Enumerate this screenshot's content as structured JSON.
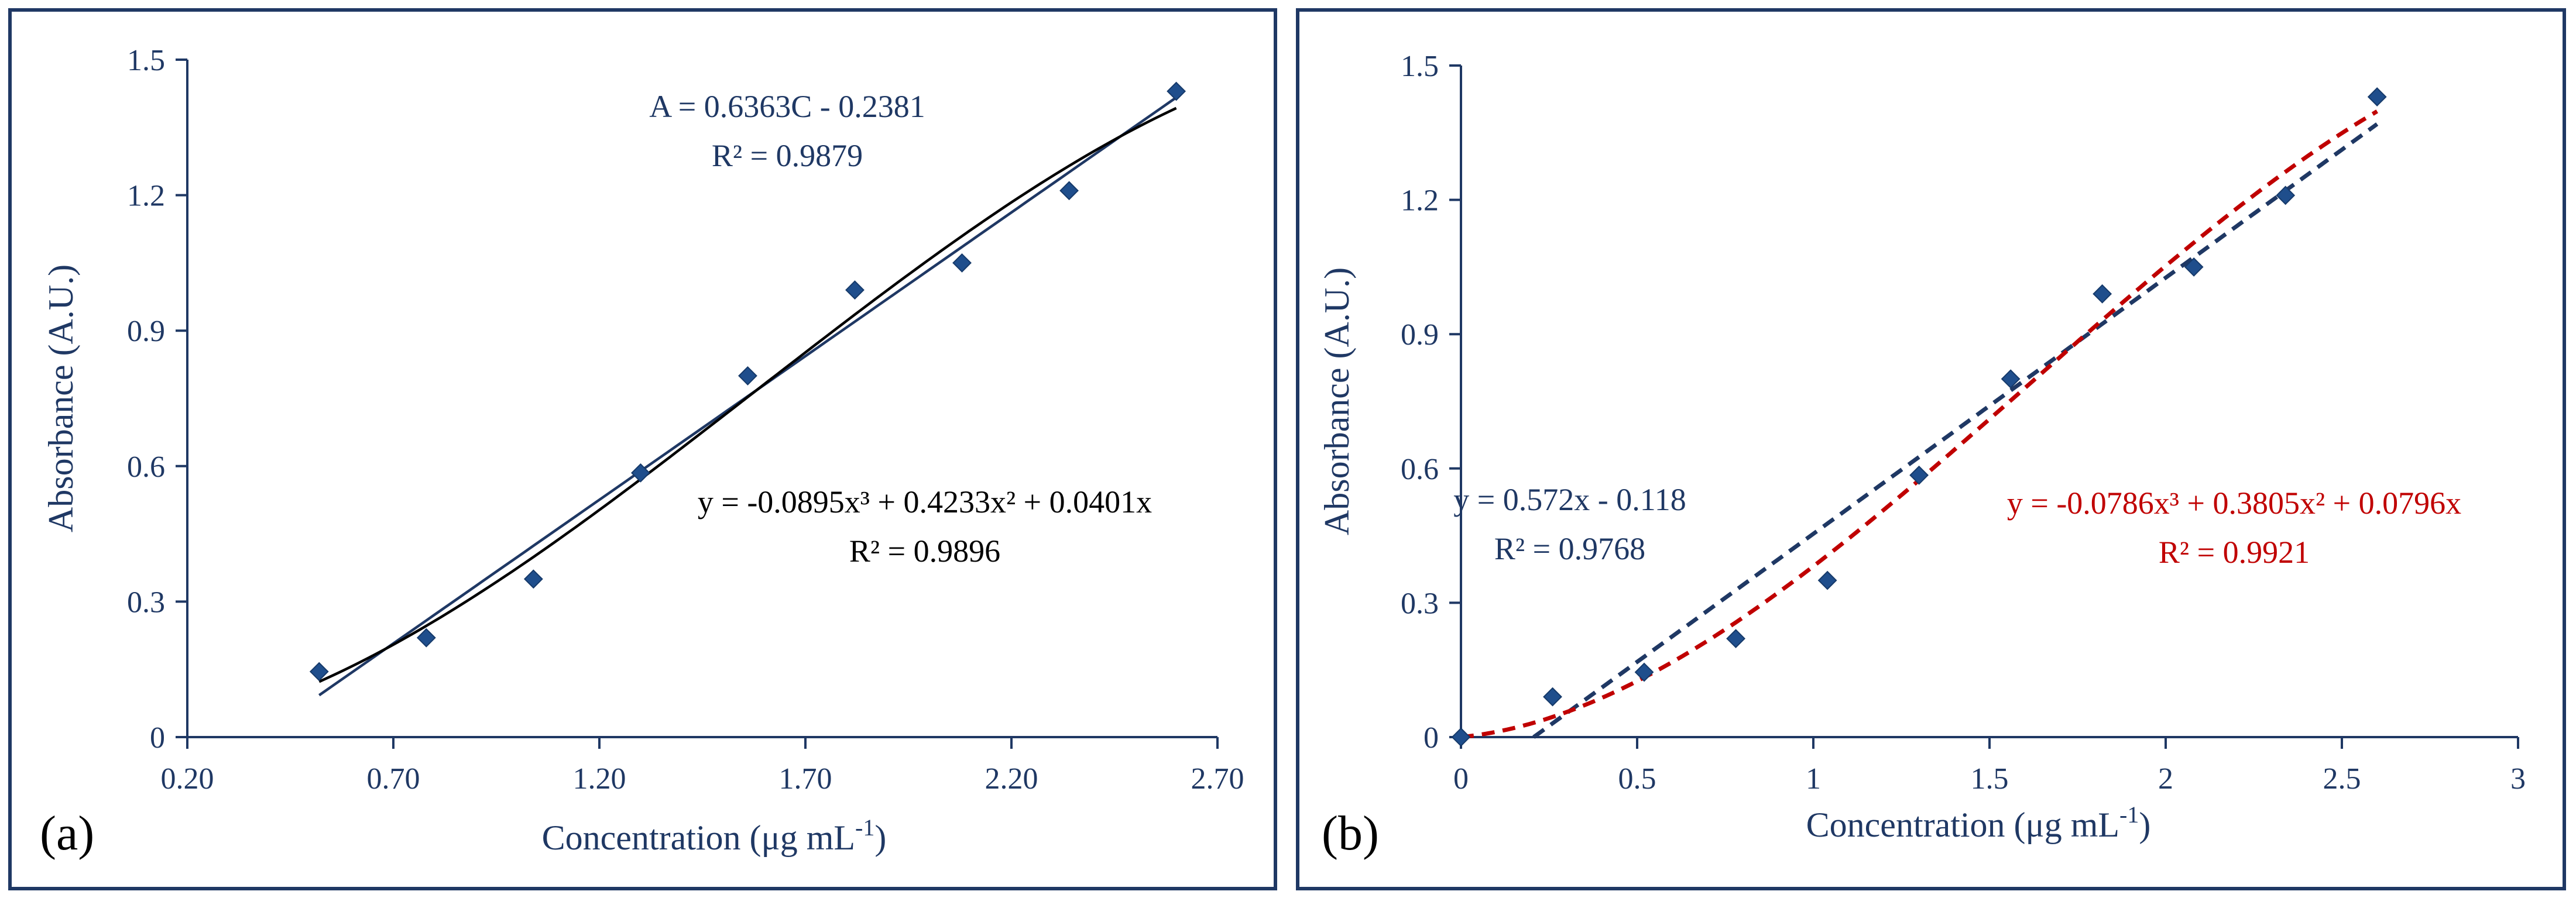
{
  "chart_data": [
    {
      "panel_label": "(a)",
      "type": "scatter",
      "xlabel": "Concentration (μg mL",
      "xlabel_sup": "-1",
      "xlabel_close": ")",
      "ylabel": "Absorbance (A.U.)",
      "xlim": [
        0.2,
        2.7
      ],
      "ylim": [
        0,
        1.5
      ],
      "xticks": [
        "0.20",
        "0.70",
        "1.20",
        "1.70",
        "2.20",
        "2.70"
      ],
      "xtick_values": [
        0.2,
        0.7,
        1.2,
        1.7,
        2.2,
        2.7
      ],
      "yticks": [
        "0",
        "0.3",
        "0.6",
        "0.9",
        "1.2",
        "1.5"
      ],
      "ytick_values": [
        0,
        0.3,
        0.6,
        0.9,
        1.2,
        1.5
      ],
      "series": [
        {
          "name": "data",
          "x": [
            0.52,
            0.78,
            1.04,
            1.3,
            1.56,
            1.82,
            2.08,
            2.34,
            2.6
          ],
          "y": [
            0.145,
            0.22,
            0.35,
            0.585,
            0.8,
            0.99,
            1.05,
            1.21,
            1.43
          ],
          "color": "#1f4e8c"
        }
      ],
      "fits": [
        {
          "name": "linear",
          "kind": "linear",
          "coef": [
            0.6363,
            -0.2381
          ],
          "x_range": [
            0.52,
            2.6
          ],
          "color": "#1f3864",
          "dashed": false
        },
        {
          "name": "cubic",
          "kind": "cubic",
          "coef": [
            -0.0895,
            0.4233,
            0.0401,
            0
          ],
          "x_range": [
            0.52,
            2.6
          ],
          "color": "#000000",
          "dashed": false
        }
      ],
      "annotations": [
        {
          "lines": [
            "A = 0.6363C - 0.2381",
            "R² = 0.9879"
          ],
          "color": "#1f3864"
        },
        {
          "lines": [
            "y = -0.0895x³ + 0.4233x² + 0.0401x",
            "R² = 0.9896"
          ],
          "color": "#000000"
        }
      ]
    },
    {
      "panel_label": "(b)",
      "type": "scatter",
      "xlabel": "Concentration (μg mL",
      "xlabel_sup": "-1",
      "xlabel_close": ")",
      "ylabel": "Absorbance (A.U.)",
      "xlim": [
        0,
        3
      ],
      "ylim": [
        0,
        1.5
      ],
      "xticks": [
        "0",
        "0.5",
        "1",
        "1.5",
        "2",
        "2.5",
        "3"
      ],
      "xtick_values": [
        0,
        0.5,
        1,
        1.5,
        2,
        2.5,
        3
      ],
      "yticks": [
        "0",
        "0.3",
        "0.6",
        "0.9",
        "1.2",
        "1.5"
      ],
      "ytick_values": [
        0,
        0.3,
        0.6,
        0.9,
        1.2,
        1.5
      ],
      "series": [
        {
          "name": "data",
          "x": [
            0,
            0.26,
            0.52,
            0.78,
            1.04,
            1.3,
            1.56,
            1.82,
            2.08,
            2.34,
            2.6
          ],
          "y": [
            0,
            0.09,
            0.145,
            0.22,
            0.35,
            0.585,
            0.8,
            0.99,
            1.05,
            1.21,
            1.43
          ],
          "color": "#1f4e8c"
        }
      ],
      "fits": [
        {
          "name": "linear",
          "kind": "linear",
          "coef": [
            0.572,
            -0.118
          ],
          "x_range": [
            0.2063,
            2.6
          ],
          "color": "#1f3864",
          "dashed": true
        },
        {
          "name": "cubic",
          "kind": "cubic",
          "coef": [
            -0.0786,
            0.3805,
            0.0796,
            0
          ],
          "x_range": [
            0,
            2.6
          ],
          "color": "#c00000",
          "dashed": true
        }
      ],
      "annotations": [
        {
          "lines": [
            "y = 0.572x - 0.118",
            "R² = 0.9768"
          ],
          "color": "#1f3864"
        },
        {
          "lines": [
            "y = -0.0786x³ + 0.3805x² + 0.0796x",
            "R² = 0.9921"
          ],
          "color": "#c00000"
        }
      ]
    }
  ]
}
